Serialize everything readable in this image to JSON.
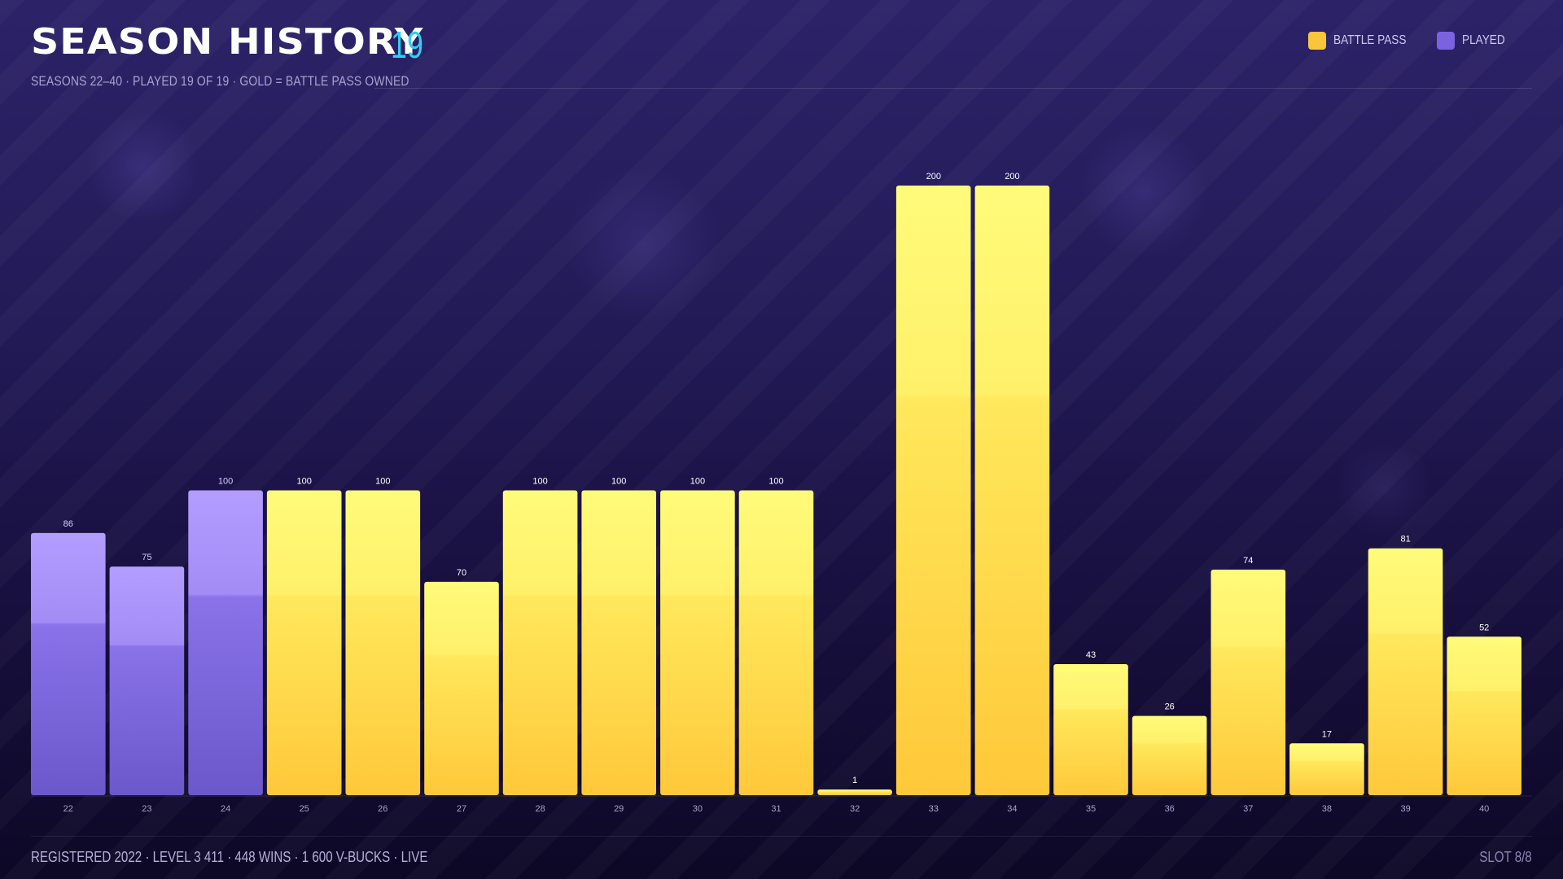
{
  "header": {
    "title": "SEASON HISTORY",
    "count": "19",
    "subtitle": "SEASONS 22–40 · PLAYED 19 OF 19 · GOLD = BATTLE PASS OWNED"
  },
  "legend": {
    "items": [
      {
        "label": "BATTLE PASS",
        "color": "#f9c53a"
      },
      {
        "label": "PLAYED",
        "color": "#7b63e0"
      }
    ],
    "placement": "top-right"
  },
  "footer": {
    "stats": "REGISTERED 2022 · LEVEL 3 411 · 448 WINS · 1 600 V-BUCKS · LIVE",
    "slot": "SLOT 8/8"
  },
  "colors": {
    "gold_top": "#fff976",
    "gold_bottom": "#ffc93c",
    "purple_top": "#b29bff",
    "purple_bottom": "#6c59cc",
    "accent": "#2fd0f2"
  },
  "chart_data": {
    "type": "bar",
    "title": "SEASON HISTORY",
    "xlabel": "",
    "ylabel": "",
    "grid": false,
    "legend_placement": "top-right",
    "ylim": [
      0,
      200
    ],
    "categories": [
      "22",
      "23",
      "24",
      "25",
      "26",
      "27",
      "28",
      "29",
      "30",
      "31",
      "32",
      "33",
      "34",
      "35",
      "36",
      "37",
      "38",
      "39",
      "40"
    ],
    "values": [
      86,
      75,
      100,
      100,
      100,
      70,
      100,
      100,
      100,
      100,
      1,
      200,
      200,
      43,
      26,
      74,
      17,
      81,
      52
    ],
    "battle_pass": [
      false,
      false,
      false,
      true,
      true,
      true,
      true,
      true,
      true,
      true,
      true,
      true,
      true,
      true,
      true,
      true,
      true,
      true,
      true
    ]
  }
}
